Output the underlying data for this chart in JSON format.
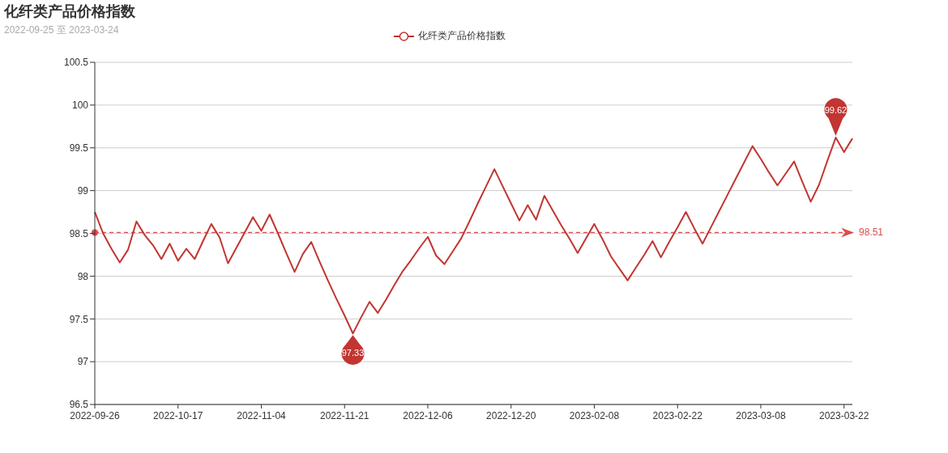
{
  "chart_data": {
    "type": "line",
    "title": "化纤类产品价格指数",
    "subtitle": "2022-09-25 至 2023-03-24",
    "categories": [
      "2022-09-26",
      null,
      null,
      null,
      null,
      null,
      null,
      null,
      null,
      null,
      "2022-10-17",
      null,
      null,
      null,
      null,
      null,
      null,
      null,
      null,
      null,
      "2022-11-04",
      null,
      null,
      null,
      null,
      null,
      null,
      null,
      null,
      null,
      "2022-11-21",
      null,
      null,
      null,
      null,
      null,
      null,
      null,
      null,
      null,
      "2022-12-06",
      null,
      null,
      null,
      null,
      null,
      null,
      null,
      null,
      null,
      "2022-12-20",
      null,
      null,
      null,
      null,
      null,
      null,
      null,
      null,
      null,
      "2023-02-08",
      null,
      null,
      null,
      null,
      null,
      null,
      null,
      null,
      null,
      "2023-02-22",
      null,
      null,
      null,
      null,
      null,
      null,
      null,
      null,
      null,
      "2023-03-08",
      null,
      null,
      null,
      null,
      null,
      null,
      null,
      null,
      null,
      "2023-03-22",
      null
    ],
    "series": [
      {
        "name": "化纤类产品价格指数",
        "color": "#c23531",
        "values": [
          98.75,
          98.5,
          98.32,
          98.16,
          98.31,
          98.64,
          98.48,
          98.36,
          98.2,
          98.38,
          98.18,
          98.32,
          98.2,
          98.41,
          98.61,
          98.45,
          98.15,
          98.33,
          98.51,
          98.69,
          98.53,
          98.72,
          98.5,
          98.27,
          98.05,
          98.26,
          98.4,
          98.17,
          97.95,
          97.74,
          97.54,
          97.33,
          97.52,
          97.7,
          97.57,
          97.73,
          97.9,
          98.06,
          98.19,
          98.33,
          98.46,
          98.24,
          98.14,
          98.29,
          98.44,
          98.64,
          98.85,
          99.05,
          99.25,
          99.05,
          98.85,
          98.65,
          98.83,
          98.66,
          98.94,
          98.77,
          98.6,
          98.44,
          98.27,
          98.44,
          98.61,
          98.43,
          98.23,
          98.09,
          97.95,
          98.1,
          98.25,
          98.41,
          98.22,
          98.4,
          98.57,
          98.75,
          98.56,
          98.38,
          98.57,
          98.76,
          98.95,
          99.14,
          99.33,
          99.52,
          99.37,
          99.21,
          99.06,
          99.2,
          99.34,
          99.1,
          98.87,
          99.07,
          99.35,
          99.62,
          99.45,
          99.61
        ],
        "value_labels": [
          null,
          null,
          null,
          null,
          null,
          null,
          null,
          null,
          null,
          null,
          null,
          null,
          null,
          null,
          null,
          null,
          null,
          null,
          null,
          null,
          null,
          null,
          null,
          null,
          null,
          null,
          null,
          null,
          null,
          null,
          null,
          "97.33",
          null,
          null,
          null,
          null,
          null,
          null,
          null,
          null,
          null,
          null,
          null,
          null,
          null,
          null,
          null,
          null,
          null,
          null,
          null,
          null,
          null,
          null,
          null,
          null,
          null,
          null,
          null,
          null,
          null,
          null,
          null,
          null,
          null,
          null,
          null,
          null,
          null,
          null,
          null,
          null,
          null,
          null,
          null,
          null,
          null,
          null,
          null,
          null,
          null,
          null,
          null,
          null,
          null,
          null,
          null,
          null,
          null,
          "99.62",
          null,
          null
        ]
      }
    ],
    "ylim": [
      96.5,
      100.5
    ],
    "yticks": [
      96.5,
      97,
      97.5,
      98,
      98.5,
      99,
      99.5,
      100,
      100.5
    ],
    "grid": "y",
    "legend": "top",
    "marker": "none",
    "line_style": "solid",
    "ref_lines": [
      {
        "axis": "y",
        "value": 98.51,
        "label": "98.51",
        "color": "#d94e4e",
        "line_style": "dashed"
      }
    ]
  }
}
